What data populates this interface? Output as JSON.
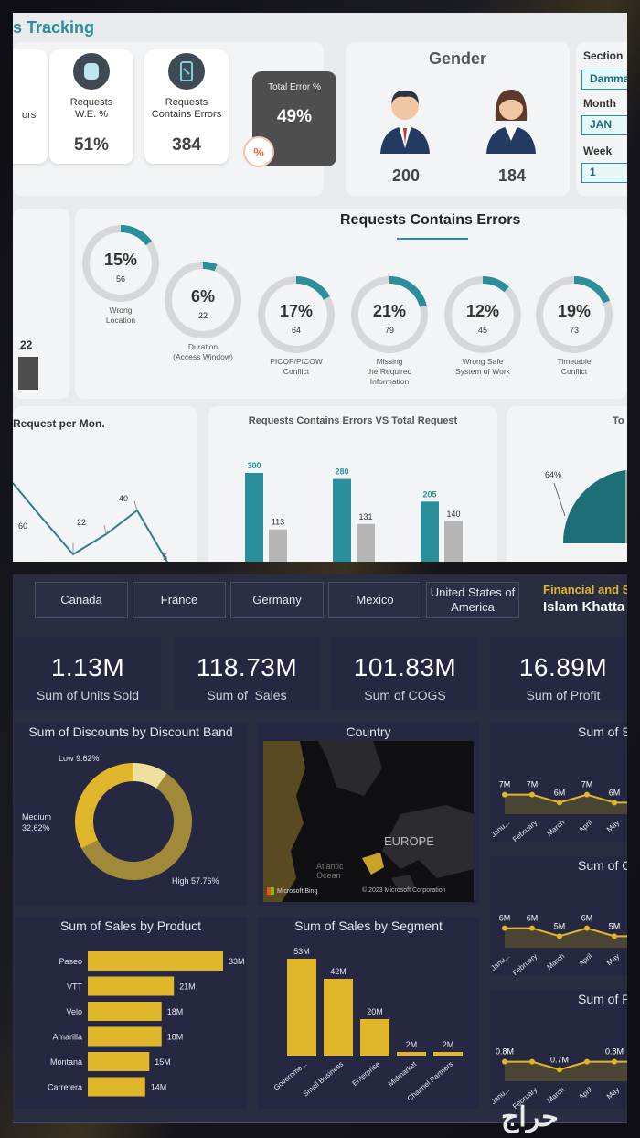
{
  "top": {
    "title": "s Tracking",
    "kpis": [
      {
        "label": "ors",
        "value": ""
      },
      {
        "label": "Requests\nW.E. %",
        "value": "51%"
      },
      {
        "label": "Requests\nContains Errors",
        "value": "384"
      }
    ],
    "total_error": {
      "label": "Total Error %",
      "value": "49%"
    },
    "gender": {
      "title": "Gender",
      "male": "200",
      "female": "184"
    },
    "filters": [
      {
        "label": "Section",
        "value": "Damma"
      },
      {
        "label": "Month",
        "value": "JAN"
      },
      {
        "label": "Week",
        "value": "1"
      }
    ],
    "left_bar_value": "22",
    "errors_title": "Requests Contains Errors",
    "donuts": [
      {
        "pct": "15%",
        "count": "56",
        "label": "Wrong\nLocation",
        "fraction": 0.15
      },
      {
        "pct": "6%",
        "count": "22",
        "label": "Duration\n(Access Window)",
        "fraction": 0.06
      },
      {
        "pct": "17%",
        "count": "64",
        "label": "PICOP/PICOW\nConflict",
        "fraction": 0.17
      },
      {
        "pct": "21%",
        "count": "79",
        "label": "Missing\nthe Required\nInformation",
        "fraction": 0.21
      },
      {
        "pct": "12%",
        "count": "45",
        "label": "Wrong Safe\nSystem of Work",
        "fraction": 0.12
      },
      {
        "pct": "19%",
        "count": "73",
        "label": "Timetable\nConflict",
        "fraction": 0.19
      }
    ],
    "line_title": "Request per Mon.",
    "line_labels": [
      "60",
      "22",
      "40",
      "5"
    ],
    "bar_title": "Requests Contains Errors VS Total Request",
    "bar_pairs": [
      {
        "a": "300",
        "b": "113"
      },
      {
        "a": "280",
        "b": "131"
      },
      {
        "a": "205",
        "b": "140"
      }
    ],
    "pie_title": "To",
    "pie_label": "64%"
  },
  "dashboard": {
    "tabs": [
      "Canada",
      "France",
      "Germany",
      "Mexico",
      "United States of America"
    ],
    "header_title": "Financial and S",
    "header_name": "Islam Khatta",
    "kpis": [
      {
        "value": "1.13M",
        "label": "Sum of Units Sold"
      },
      {
        "value": "118.73M",
        "label": "Sum of  Sales"
      },
      {
        "value": "101.83M",
        "label": "Sum of COGS"
      },
      {
        "value": "16.89M",
        "label": "Sum of Profit"
      }
    ],
    "colors": {
      "gold": "#e0b72a",
      "gold_dark": "#a08a3a",
      "gold_light": "#efe0a0",
      "bg": "#2a2c40",
      "card": "#252840"
    },
    "map": {
      "title": "Country",
      "label": "EUROPE",
      "ocean": "Atlantic\nOcean",
      "bing": "Microsoft Bing",
      "copyright": "© 2023 Microsoft Corporation"
    },
    "watermark": "حراج"
  },
  "chart_data": [
    {
      "type": "pie",
      "title": "Sum of Discounts by Discount Band",
      "labels": [
        "High 57.76%",
        "Medium\n32.62%",
        "Low 9.62%"
      ],
      "values": [
        57.76,
        32.62,
        9.62
      ],
      "colors": [
        "#a08a3a",
        "#e0b72a",
        "#efe0a0"
      ]
    },
    {
      "type": "bar",
      "title": "Sum of Sales by Product",
      "categories": [
        "Paseo",
        "VTT",
        "Velo",
        "Amarilla",
        "Montana",
        "Carretera"
      ],
      "values": [
        33,
        21,
        18,
        18,
        15,
        14
      ],
      "value_labels": [
        "33M",
        "21M",
        "18M",
        "18M",
        "15M",
        "14M"
      ]
    },
    {
      "type": "bar",
      "title": "Sum of Sales by Segment",
      "categories": [
        "Governme...",
        "Small Business",
        "Enterprise",
        "Midmarket",
        "Channel Partners"
      ],
      "values": [
        53,
        42,
        20,
        2,
        2
      ],
      "value_labels": [
        "53M",
        "42M",
        "20M",
        "2M",
        "2M"
      ]
    },
    {
      "type": "line",
      "title": "Sum of S",
      "categories": [
        "Janu...",
        "February",
        "March",
        "April",
        "May"
      ],
      "values": [
        7,
        7,
        6,
        7,
        6
      ],
      "value_labels": [
        "7M",
        "7M",
        "6M",
        "7M",
        "6M"
      ]
    },
    {
      "type": "line",
      "title": "Sum of C",
      "categories": [
        "Janu...",
        "February",
        "March",
        "April",
        "May"
      ],
      "values": [
        6,
        6,
        5,
        6,
        5
      ],
      "value_labels": [
        "6M",
        "6M",
        "5M",
        "6M",
        "5M"
      ]
    },
    {
      "type": "line",
      "title": "Sum of P",
      "categories": [
        "Janu...",
        "February",
        "March",
        "April",
        "May"
      ],
      "values": [
        0.8,
        0.8,
        0.7,
        0.8,
        0.8
      ],
      "value_labels": [
        "0.8M",
        "",
        "0.7M",
        "",
        "0.8M"
      ]
    }
  ]
}
